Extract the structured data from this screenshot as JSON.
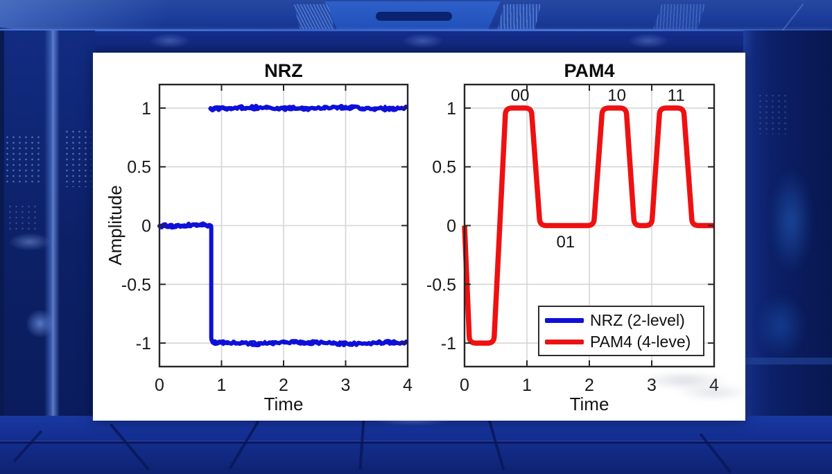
{
  "figure": {
    "panel_bg": "#ffffff"
  },
  "colors": {
    "nrz_line": "#0e10d9",
    "pam4_line": "#ee1111",
    "grid": "#d5d5d5",
    "axis": "#262626",
    "text": "#1a1a1a",
    "background_base": "#0e2472",
    "background_light": "#2b57c0"
  },
  "chart_data": [
    {
      "type": "line",
      "title": "NRZ",
      "xlabel": "Time",
      "ylabel": "Amplitude",
      "xlim": [
        0,
        4
      ],
      "ylim": [
        -1.2,
        1.2
      ],
      "grid": true,
      "xticks": {
        "values": [
          0,
          1,
          2,
          3,
          4
        ],
        "labels": [
          "0",
          "1",
          "2",
          "3",
          "4"
        ]
      },
      "yticks": {
        "values": [
          1,
          0.5,
          0,
          -0.5,
          -1
        ],
        "labels": [
          "1",
          "0.5",
          "0",
          "-0.5",
          "-1"
        ]
      },
      "line_color": "#0e10d9",
      "style": "noisy-levels",
      "noise_amplitude": 0.03,
      "segments": [
        {
          "level": 0,
          "t_start": 0,
          "t_end": 0.82
        },
        {
          "level": 1,
          "t_start": 0.82,
          "t_end": 4.0
        },
        {
          "level": -1,
          "t_start": 0.86,
          "t_end": 4.0
        }
      ],
      "transition": {
        "t": 0.835,
        "from": 0,
        "to": -1
      }
    },
    {
      "type": "line",
      "title": "PAM4",
      "xlabel": "Time",
      "ylabel": "",
      "xlim": [
        0,
        4
      ],
      "ylim": [
        -1.2,
        1.2
      ],
      "grid": true,
      "xticks": {
        "values": [
          0,
          1,
          2,
          3,
          4
        ],
        "labels": [
          "0",
          "1",
          "2",
          "3",
          "4"
        ]
      },
      "yticks": {
        "values": [
          1,
          0.5,
          0,
          -0.5,
          -1
        ],
        "labels": [
          "1",
          "0.5",
          "0",
          "-0.5",
          "-1"
        ]
      },
      "line_color": "#ee1111",
      "x": [
        0,
        0.08,
        0.47,
        0.66,
        1.07,
        1.21,
        2.07,
        2.21,
        2.59,
        2.72,
        3.0,
        3.13,
        3.51,
        3.65,
        4.0
      ],
      "y": [
        0,
        -1,
        -1,
        1,
        1,
        0,
        0,
        1,
        1,
        0,
        0,
        1,
        1,
        0,
        0
      ],
      "annotations": [
        {
          "text": "00",
          "t": 0.89,
          "v": 1.11
        },
        {
          "text": "01",
          "t": 1.62,
          "v": -0.14
        },
        {
          "text": "10",
          "t": 2.44,
          "v": 1.11
        },
        {
          "text": "11",
          "t": 3.39,
          "v": 1.11
        }
      ],
      "legend": {
        "position": "south-east",
        "entries": [
          {
            "label": "NRZ (2-level)",
            "color": "#0e10d9"
          },
          {
            "label": "PAM4 (4-leve)",
            "color": "#ee1111"
          }
        ]
      }
    }
  ]
}
